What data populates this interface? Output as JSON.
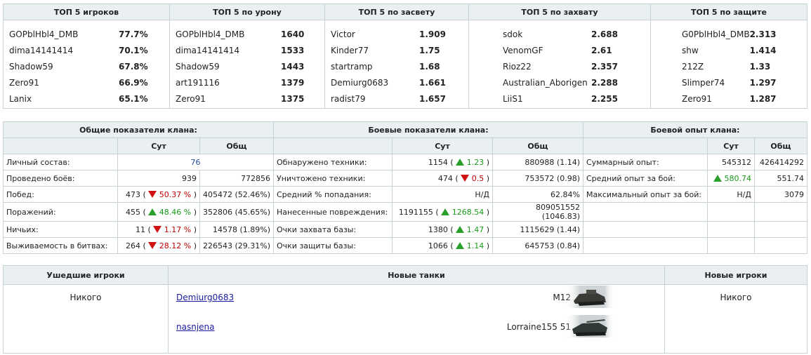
{
  "top5": [
    {
      "title": "ТОП 5 игроков",
      "rows": [
        [
          "GOPblHbl4_DMB",
          "77.7%"
        ],
        [
          "dima14141414",
          "70.1%"
        ],
        [
          "Shadow59",
          "67.8%"
        ],
        [
          "Zero91",
          "66.9%"
        ],
        [
          "Lanix",
          "65.1%"
        ]
      ]
    },
    {
      "title": "ТОП 5 по урону",
      "rows": [
        [
          "GOPblHbl4_DMB",
          "1640"
        ],
        [
          "dima14141414",
          "1533"
        ],
        [
          "Shadow59",
          "1443"
        ],
        [
          "art191116",
          "1379"
        ],
        [
          "Zero91",
          "1375"
        ]
      ]
    },
    {
      "title": "ТОП 5 по засвету",
      "rows": [
        [
          "Victor",
          "1.909"
        ],
        [
          "Kinder77",
          "1.75"
        ],
        [
          "startramp",
          "1.68"
        ],
        [
          "Demiurg0683",
          "1.661"
        ],
        [
          "radist79",
          "1.657"
        ]
      ]
    },
    {
      "title": "ТОП 5 по захвату",
      "rows": [
        [
          "sdok",
          "2.688"
        ],
        [
          "VenomGF",
          "2.61"
        ],
        [
          "Rioz22",
          "2.357"
        ],
        [
          "Australian_Aborigen",
          "2.288"
        ],
        [
          "LiiS1",
          "2.255"
        ]
      ]
    },
    {
      "title": "ТОП 5 по защите",
      "rows": [
        [
          "G0PblHbl4_DMB",
          "2.313"
        ],
        [
          "shw",
          "1.414"
        ],
        [
          "212Z",
          "1.33"
        ],
        [
          "Slimper74",
          "1.297"
        ],
        [
          "Zero91",
          "1.287"
        ]
      ]
    }
  ],
  "clan": {
    "general_title": "Общие показатели клана:",
    "combat_title": "Боевые показатели клана:",
    "exp_title": "Боевой опыт клана:",
    "col_sut": "Сут",
    "col_total": "Общ",
    "general": [
      {
        "label": "Личный состав:",
        "sut": "76",
        "total": ""
      },
      {
        "label": "Проведено боёв:",
        "sut": "939",
        "total": "772856"
      },
      {
        "label": "Побед:",
        "sut_val": "473",
        "dir": "down",
        "delta": "50.37 %",
        "total": "405472 (52.46%)"
      },
      {
        "label": "Поражений:",
        "sut_val": "455",
        "dir": "up",
        "delta": "48.46 %",
        "total": "352806 (45.65%)"
      },
      {
        "label": "Ничьих:",
        "sut_val": "11",
        "dir": "down",
        "delta": "1.17 %",
        "total": "14578 (1.89%)"
      },
      {
        "label": "Выживаемость в битвах:",
        "sut_val": "264",
        "dir": "down",
        "delta": "28.12 %",
        "total": "226543 (29.31%)"
      }
    ],
    "combat": [
      {
        "label": "Обнаружено техники:",
        "sut_val": "1154",
        "dir": "up",
        "delta": "1.23",
        "total": "880988 (1.14)"
      },
      {
        "label": "Уничтожено техники:",
        "sut_val": "474",
        "dir": "down",
        "delta": "0.5",
        "total": "753572 (0.98)"
      },
      {
        "label": "Средний % попадания:",
        "sut": "Н/Д",
        "total": "62.84%"
      },
      {
        "label": "Нанесенные повреждения:",
        "sut_val": "1191155",
        "dir": "up",
        "delta": "1268.54",
        "total": "809051552 (1046.83)"
      },
      {
        "label": "Очки захвата базы:",
        "sut_val": "1380",
        "dir": "up",
        "delta": "1.47",
        "total": "1115629 (1.44)"
      },
      {
        "label": "Очки защиты базы:",
        "sut_val": "1066",
        "dir": "up",
        "delta": "1.14",
        "total": "645753 (0.84)"
      }
    ],
    "exp": [
      {
        "label": "Суммарный опыт:",
        "sut": "545312",
        "total": "426414292"
      },
      {
        "label": "Средний опыт за бой:",
        "sut": "580.74",
        "dir": "up",
        "total": "551.74"
      },
      {
        "label": "Максимальный опыт за бой:",
        "sut": "Н/Д",
        "total": "3079"
      }
    ]
  },
  "bottom": {
    "left_title": "Ушедшие игроки",
    "mid_title": "Новые танки",
    "right_title": "Новые игроки",
    "left_text": "Никого",
    "right_text": "Никого",
    "tanks": [
      {
        "player": "Demiurg0683",
        "tank": "M12"
      },
      {
        "player": "nasnjena",
        "tank": "Lorraine155 51"
      }
    ]
  }
}
